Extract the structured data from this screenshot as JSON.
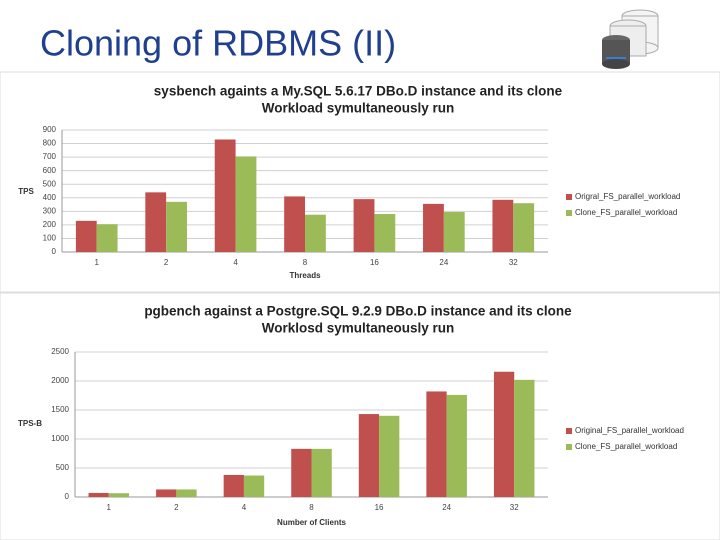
{
  "slide_title": "Cloning of RDBMS (II)",
  "chart_data": [
    {
      "type": "bar",
      "title": "sysbench againts a My.SQL 5.6.17 DBo.D instance and its clone",
      "subtitle": "Workload symultaneously run",
      "x_label": "Threads",
      "y_label": "TPS",
      "categories": [
        "1",
        "2",
        "4",
        "8",
        "16",
        "24",
        "32"
      ],
      "series": [
        {
          "name": "Origral_FS_parallel_workload",
          "color": "#c0504d",
          "values": [
            230,
            440,
            830,
            410,
            390,
            355,
            385
          ]
        },
        {
          "name": "Clone_FS_parallel_workload",
          "color": "#9bbb59",
          "values": [
            205,
            370,
            705,
            275,
            280,
            295,
            360
          ]
        }
      ],
      "ylim": [
        0,
        900
      ],
      "yticks": [
        0,
        100,
        200,
        300,
        400,
        500,
        600,
        700,
        800,
        900
      ],
      "grid": true,
      "legend": "right"
    },
    {
      "type": "bar",
      "title": "pgbench against a Postgre.SQL 9.2.9 DBo.D instance and its clone",
      "subtitle": "Worklosd symultaneously run",
      "x_label": "Number of Clients",
      "y_label": "TPS-B",
      "categories": [
        "1",
        "2",
        "4",
        "8",
        "16",
        "24",
        "32"
      ],
      "series": [
        {
          "name": "Original_FS_parallel_workload",
          "color": "#c0504d",
          "values": [
            70,
            130,
            380,
            830,
            1430,
            1820,
            2160
          ]
        },
        {
          "name": "Clone_FS_parallel_workload",
          "color": "#9bbb59",
          "values": [
            65,
            130,
            370,
            830,
            1400,
            1760,
            2020
          ]
        }
      ],
      "ylim": [
        0,
        2500
      ],
      "yticks": [
        0,
        500,
        1000,
        1500,
        2000,
        2500
      ],
      "grid": true,
      "legend": "right"
    }
  ]
}
